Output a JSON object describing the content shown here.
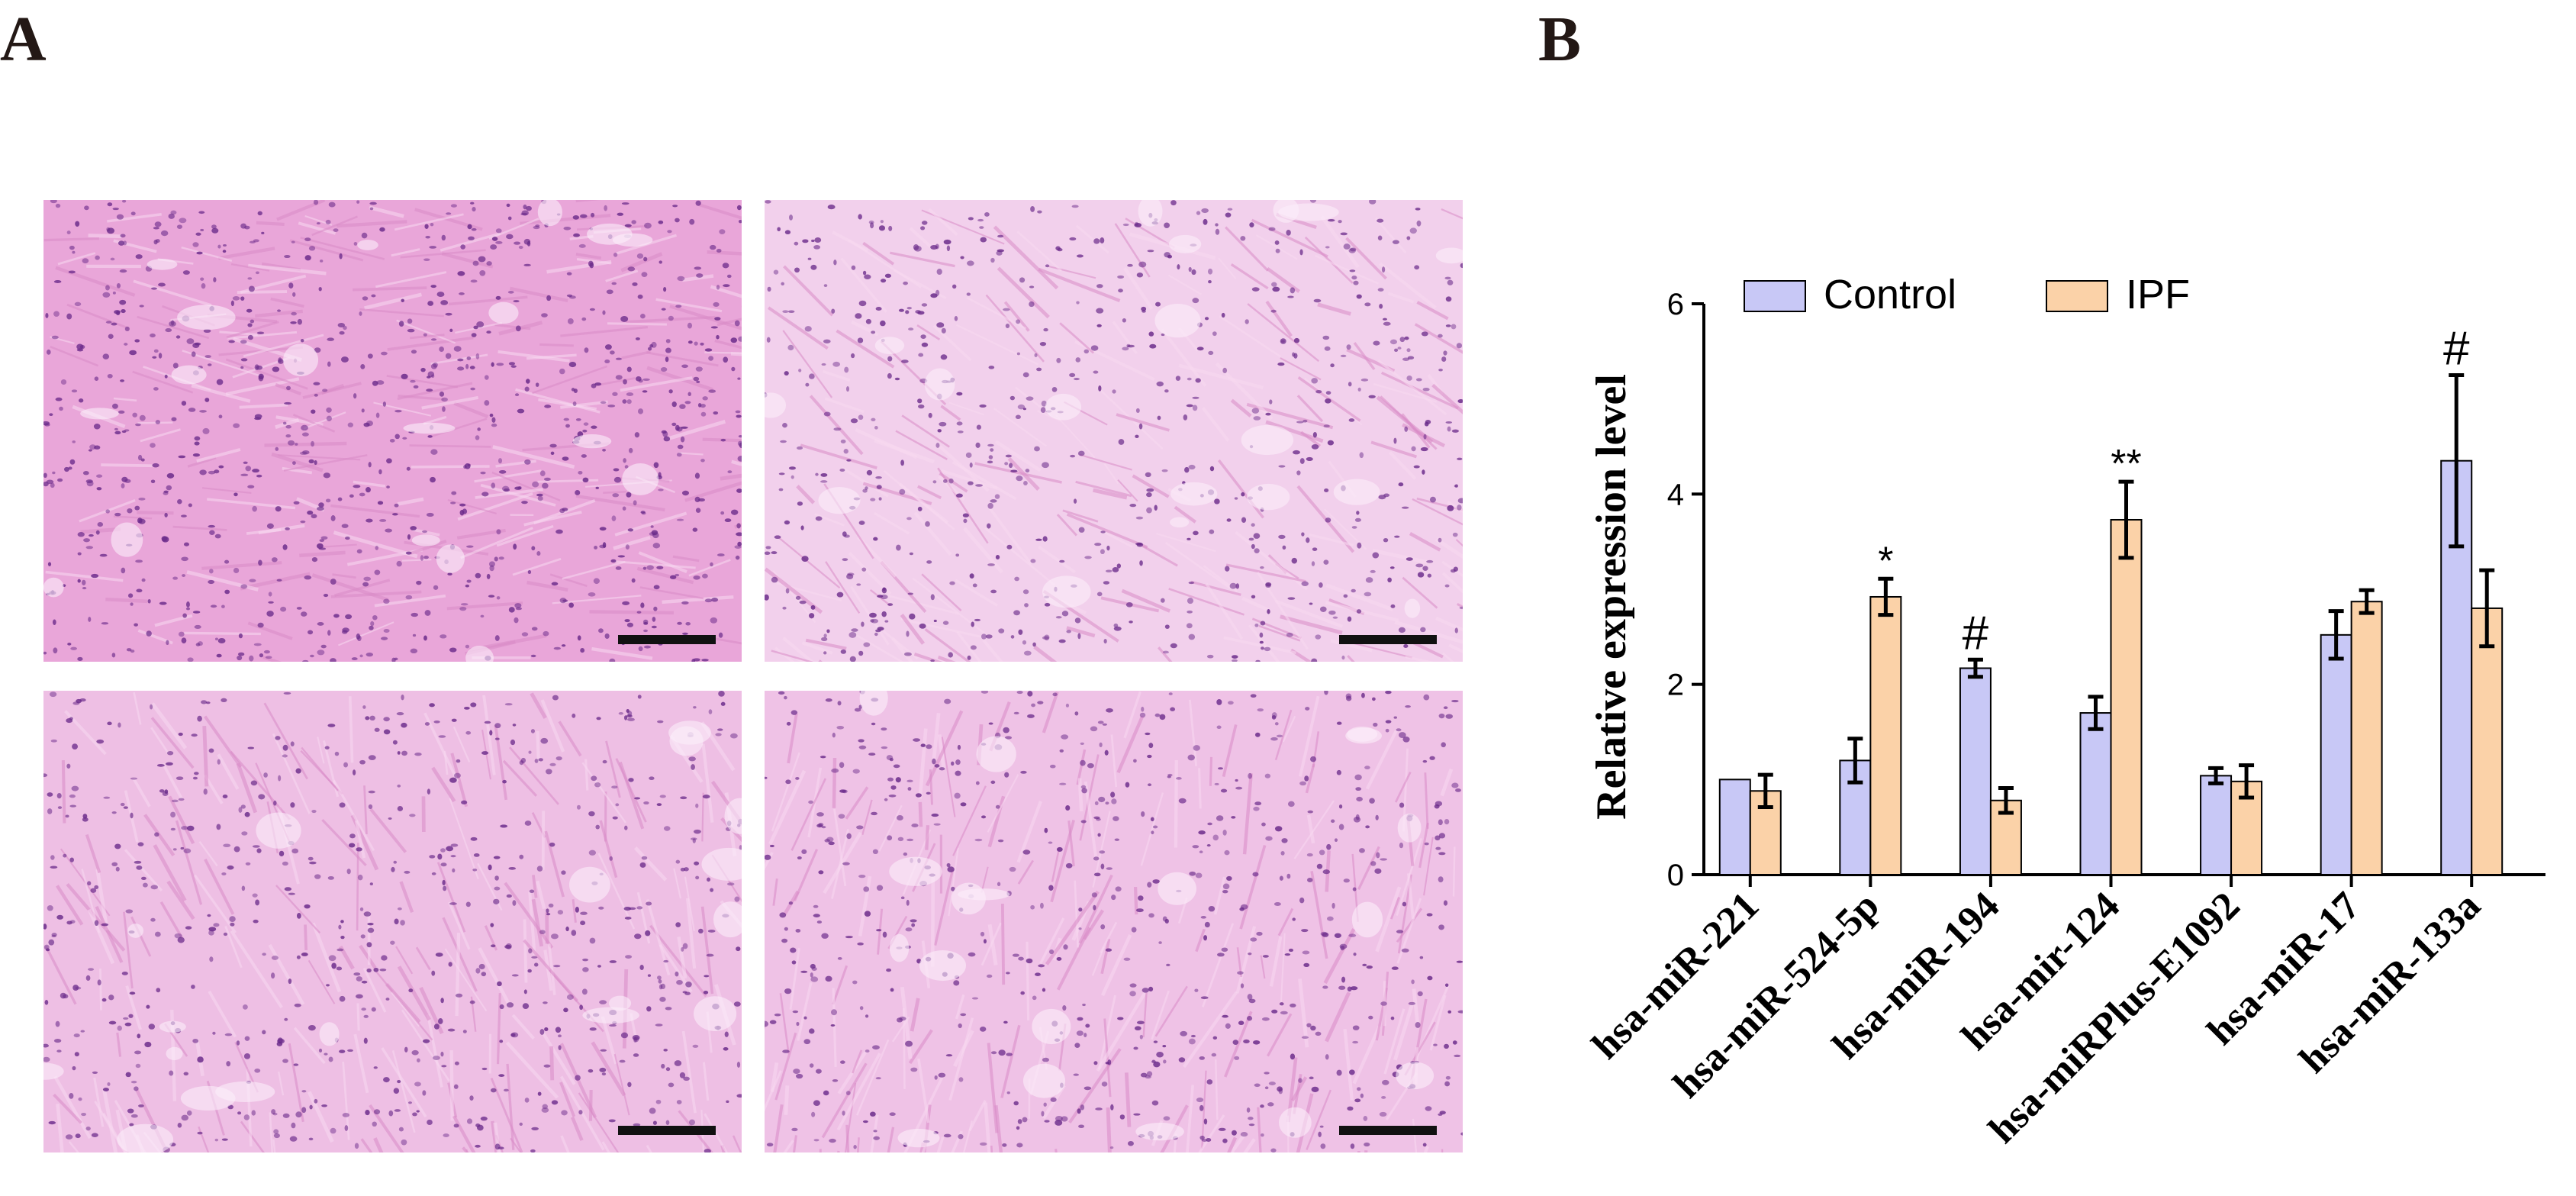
{
  "panels": {
    "a_label": "A",
    "b_label": "B"
  },
  "micrographs": [
    {
      "id": "top-left",
      "tint": "#e9a6d9"
    },
    {
      "id": "top-right",
      "tint": "#f2d0ec"
    },
    {
      "id": "bottom-left",
      "tint": "#eebfe4"
    },
    {
      "id": "bottom-right",
      "tint": "#efc2e6"
    }
  ],
  "colors": {
    "control": "#c8c8f6",
    "ipf": "#fbd2a8",
    "ink": "#000000",
    "tissue_nuclei": "#6a2a8a",
    "tissue_pink": "#e7a2cf"
  },
  "chart_data": {
    "type": "bar",
    "title": "",
    "xlabel": "",
    "ylabel": "Relative expression level",
    "ylim": [
      0,
      6
    ],
    "yticks": [
      "0",
      "2",
      "4",
      "6"
    ],
    "categories": [
      "hsa-miR-221",
      "hsa-miR-524-5p",
      "hsa-miR-194",
      "hsa-mir-124",
      "hsa-miRPlus-E1092",
      "hsa-miR-17",
      "hsa-miR-133a"
    ],
    "series": [
      {
        "name": "Control",
        "values": [
          1.0,
          1.2,
          2.17,
          1.7,
          1.04,
          2.52,
          4.35
        ],
        "errors": [
          0.0,
          0.23,
          0.09,
          0.17,
          0.08,
          0.25,
          0.9
        ]
      },
      {
        "name": "IPF",
        "values": [
          0.88,
          2.92,
          0.78,
          3.73,
          0.98,
          2.87,
          2.8
        ],
        "errors": [
          0.17,
          0.19,
          0.13,
          0.4,
          0.17,
          0.12,
          0.4
        ]
      }
    ],
    "annotations": [
      "",
      "*",
      "#",
      "**",
      "",
      "",
      "#"
    ],
    "legend": "top",
    "grid": false
  }
}
